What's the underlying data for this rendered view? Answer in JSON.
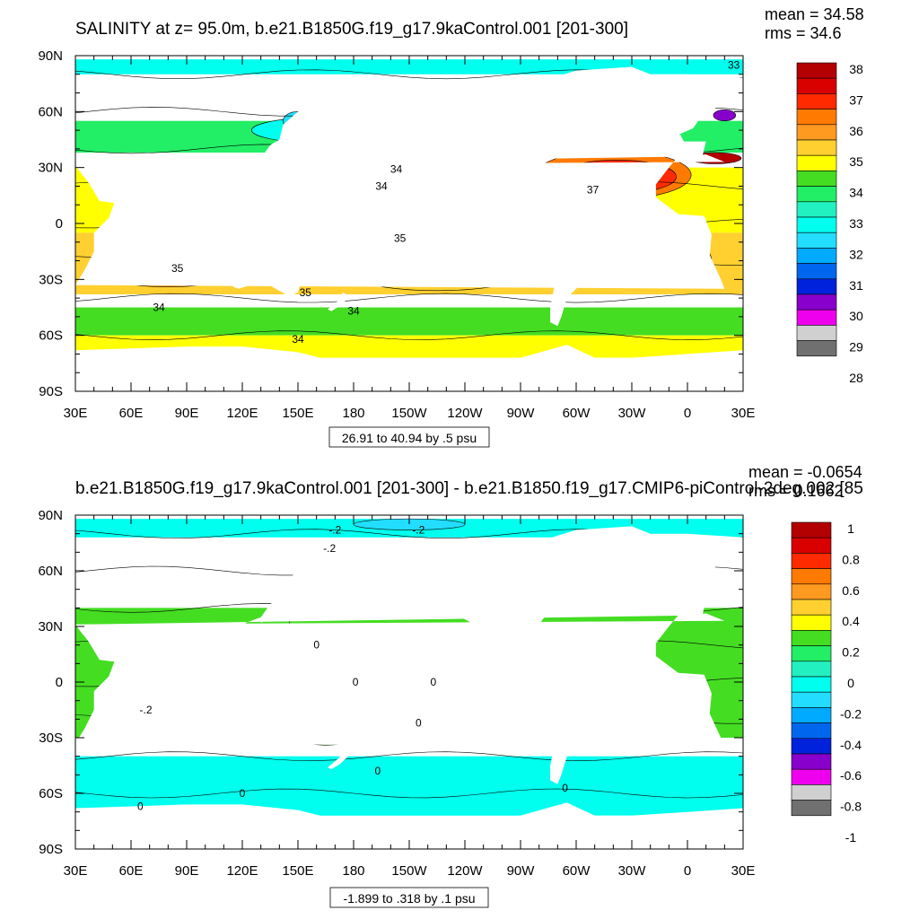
{
  "chart_data": [
    {
      "type": "heatmap",
      "title": "SALINITY at z=  95.0m, b.e21.B1850G.f19_g17.9kaControl.001 [201-300]",
      "stats": {
        "mean": "mean = 34.58",
        "rms": "rms = 34.6"
      },
      "x_ticks": [
        "30E",
        "60E",
        "90E",
        "120E",
        "150E",
        "180",
        "150W",
        "120W",
        "90W",
        "60W",
        "30W",
        "0",
        "30E"
      ],
      "y_ticks": [
        "90N",
        "60N",
        "30N",
        "0",
        "30S",
        "60S",
        "90S"
      ],
      "colorbar_levels": [
        "38",
        "37",
        "36",
        "35",
        "34",
        "33",
        "32",
        "31",
        "30",
        "29",
        "28"
      ],
      "colorbar_colors": [
        "#b30000",
        "#d90000",
        "#ff2a00",
        "#ff7a00",
        "#ff9a20",
        "#ffd030",
        "#ffff00",
        "#44dd22",
        "#22ee66",
        "#22f0c0",
        "#00ffee",
        "#22ddff",
        "#00aaff",
        "#0066ee",
        "#0022dd",
        "#8800cc",
        "#ee00ee",
        "#d0d0d0",
        "#707070"
      ],
      "note": "26.91 to 40.94 by .5 psu",
      "contour_labels": [
        {
          "text": "35",
          "lon": 205,
          "lat": -8
        },
        {
          "text": "34",
          "lon": 195,
          "lat": 20
        },
        {
          "text": "34",
          "lon": 203,
          "lat": 29
        },
        {
          "text": "35",
          "lon": 85,
          "lat": -24
        },
        {
          "text": "34",
          "lon": 75,
          "lat": -45
        },
        {
          "text": "35",
          "lon": 154,
          "lat": -37
        },
        {
          "text": "34",
          "lon": 180,
          "lat": -47
        },
        {
          "text": "34",
          "lon": 150,
          "lat": -62
        },
        {
          "text": "37",
          "lon": -51,
          "lat": 18
        },
        {
          "text": "33",
          "lon": 25,
          "lat": 85
        }
      ],
      "zones": [
        {
          "name": "arctic",
          "fill": "#00ffee",
          "lat": [
            80,
            88
          ]
        },
        {
          "name": "north-pacific",
          "fill": "#22ee66",
          "lat": [
            38,
            55
          ]
        },
        {
          "name": "tropical-band",
          "fill": "#ffff00",
          "lat": [
            -5,
            30
          ]
        },
        {
          "name": "subtropical-south",
          "fill": "#ffd030",
          "lat": [
            -38,
            -5
          ]
        },
        {
          "name": "southern-ocean",
          "fill": "#44dd22",
          "lat": [
            -60,
            -45
          ]
        },
        {
          "name": "sea-ice-edge",
          "fill": "#ffff00",
          "lat": [
            -72,
            -60
          ]
        }
      ]
    },
    {
      "type": "heatmap",
      "title": "b.e21.B1850G.f19_g17.9kaControl.001 [201-300] - b.e21.B1850.f19_g17.CMIP6-piControl-2deg.002 [85",
      "stats": {
        "mean": "mean = -0.0654",
        "rms": "rms = 0.1662"
      },
      "x_ticks": [
        "30E",
        "60E",
        "90E",
        "120E",
        "150E",
        "180",
        "150W",
        "120W",
        "90W",
        "60W",
        "30W",
        "0",
        "30E"
      ],
      "y_ticks": [
        "90N",
        "60N",
        "30N",
        "0",
        "30S",
        "60S",
        "90S"
      ],
      "colorbar_levels": [
        "1",
        "0.8",
        "0.6",
        "0.4",
        "0.2",
        "0",
        "-0.2",
        "-0.4",
        "-0.6",
        "-0.8",
        "-1"
      ],
      "colorbar_colors": [
        "#b30000",
        "#d90000",
        "#ff2a00",
        "#ff7a00",
        "#ff9a20",
        "#ffd030",
        "#ffff00",
        "#44dd22",
        "#22ee66",
        "#22f0c0",
        "#00ffee",
        "#22ddff",
        "#00aaff",
        "#0066ee",
        "#0022dd",
        "#8800cc",
        "#ee00ee",
        "#d0d0d0",
        "#707070"
      ],
      "note": "-1.899 to .318 by .1 psu",
      "contour_labels": [
        {
          "text": "-.2",
          "lon": 170,
          "lat": 82
        },
        {
          "text": "-.2",
          "lon": 215,
          "lat": 82
        },
        {
          "text": "-.2",
          "lon": 167,
          "lat": 72
        },
        {
          "text": "0",
          "lon": 160,
          "lat": 20
        },
        {
          "text": "0",
          "lon": 181,
          "lat": 0
        },
        {
          "text": "0",
          "lon": 223,
          "lat": 0
        },
        {
          "text": "-.2",
          "lon": 68,
          "lat": -15
        },
        {
          "text": "0",
          "lon": 215,
          "lat": -22
        },
        {
          "text": "0",
          "lon": 193,
          "lat": -48
        },
        {
          "text": "0",
          "lon": 120,
          "lat": -60
        },
        {
          "text": "0",
          "lon": 65,
          "lat": -67
        },
        {
          "text": "0",
          "lon": -66,
          "lat": -57
        }
      ],
      "zones": [
        {
          "name": "arctic",
          "fill": "#00ffee",
          "lat": [
            78,
            88
          ]
        },
        {
          "name": "mid-pacific",
          "fill": "#44dd22",
          "lat": [
            -30,
            40
          ]
        },
        {
          "name": "southern-ocean",
          "fill": "#00ffee",
          "lat": [
            -72,
            -40
          ]
        }
      ]
    }
  ]
}
